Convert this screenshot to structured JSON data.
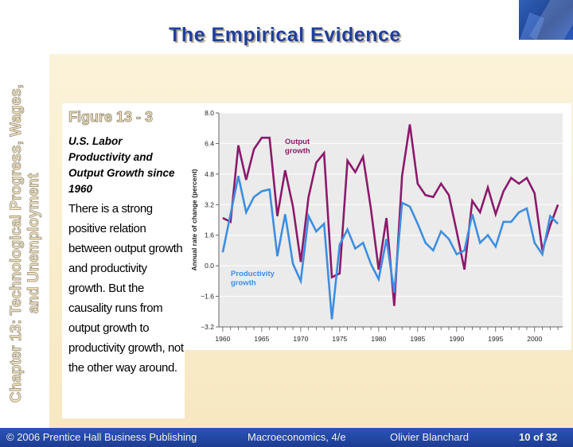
{
  "slide": {
    "title": "The Empirical Evidence",
    "side_title": "Chapter 13: Technological Progress, Wages, and Unemployment"
  },
  "figure": {
    "number": "Figure 13 - 3",
    "caption": "U.S. Labor Productivity and Output Growth since 1960",
    "body": "There is a strong positive relation between output growth and productivity growth. But the causality runs from output growth to productivity growth, not the other way around."
  },
  "footer": {
    "publisher": "© 2006 Prentice Hall Business Publishing",
    "book": "Macroeconomics, 4/e",
    "author": "Olivier Blanchard",
    "page": "10 of 32"
  },
  "colors": {
    "output": "#8b1a6b",
    "productivity": "#3d8ee0",
    "title": "#1f3f9a",
    "footer": "#1f45a0",
    "plot_bg": "#ebebeb"
  },
  "chart_data": {
    "type": "line",
    "ylabel": "Annual rate of change (percent)",
    "ylim": [
      -3.2,
      8.0
    ],
    "yticks": [
      "8.0",
      "6.4",
      "4.8",
      "3.2",
      "1.6",
      "0.0",
      "−1.6",
      "−3.2"
    ],
    "xticks": [
      "1960",
      "1965",
      "1970",
      "1975",
      "1980",
      "1985",
      "1990",
      "1995",
      "2000"
    ],
    "x": [
      1960,
      1961,
      1962,
      1963,
      1964,
      1965,
      1966,
      1967,
      1968,
      1969,
      1970,
      1971,
      1972,
      1973,
      1974,
      1975,
      1976,
      1977,
      1978,
      1979,
      1980,
      1981,
      1982,
      1983,
      1984,
      1985,
      1986,
      1987,
      1988,
      1989,
      1990,
      1991,
      1992,
      1993,
      1994,
      1995,
      1996,
      1997,
      1998,
      1999,
      2000,
      2001,
      2002,
      2003
    ],
    "series": [
      {
        "name": "Output growth",
        "values": [
          2.5,
          2.3,
          6.3,
          4.5,
          6.1,
          6.7,
          6.7,
          2.6,
          5.0,
          3.1,
          0.2,
          3.6,
          5.4,
          5.9,
          -0.6,
          -0.4,
          5.5,
          4.9,
          5.7,
          3.0,
          -0.2,
          2.5,
          -2.1,
          4.7,
          7.4,
          4.3,
          3.7,
          3.6,
          4.3,
          3.7,
          1.8,
          -0.2,
          3.4,
          2.8,
          4.1,
          2.7,
          3.9,
          4.6,
          4.3,
          4.6,
          3.8,
          0.8,
          2.1,
          3.2
        ]
      },
      {
        "name": "Productivity growth",
        "values": [
          0.7,
          2.7,
          4.7,
          2.8,
          3.6,
          3.9,
          4.0,
          0.5,
          2.7,
          0.1,
          -0.8,
          2.6,
          1.8,
          2.2,
          -2.8,
          1.1,
          1.9,
          0.9,
          1.2,
          0.1,
          -0.7,
          1.4,
          -1.4,
          3.3,
          3.1,
          2.2,
          1.2,
          0.8,
          1.8,
          1.4,
          0.6,
          0.8,
          2.7,
          1.2,
          1.6,
          1.0,
          2.3,
          2.3,
          2.8,
          3.0,
          1.2,
          0.6,
          2.6,
          2.2
        ]
      }
    ],
    "annotations": [
      "Output growth",
      "Productivity growth"
    ]
  }
}
